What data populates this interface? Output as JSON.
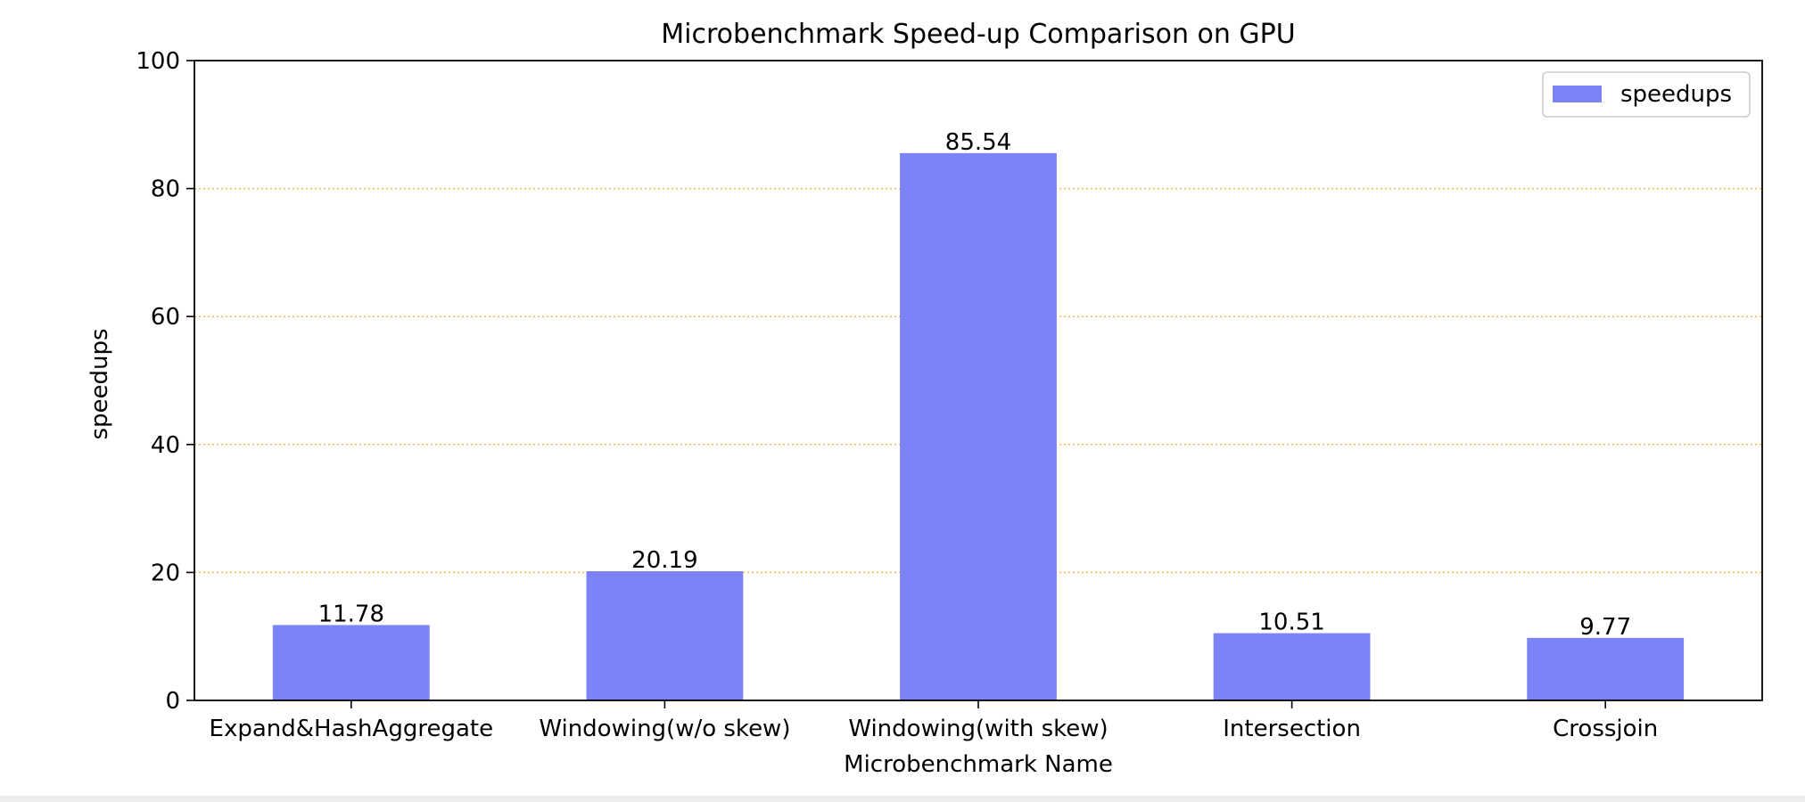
{
  "chart_data": {
    "type": "bar",
    "title": "Microbenchmark Speed-up Comparison on GPU",
    "xlabel": "Microbenchmark Name",
    "ylabel": "speedups",
    "categories": [
      "Expand&HashAggregate",
      "Windowing(w/o skew)",
      "Windowing(with skew)",
      "Intersection",
      "Crossjoin"
    ],
    "series": [
      {
        "name": "speedups",
        "values": [
          11.78,
          20.19,
          85.54,
          10.51,
          9.77
        ],
        "value_labels": [
          "11.78",
          "20.19",
          "85.54",
          "10.51",
          "9.77"
        ]
      }
    ],
    "ylim": [
      0,
      100
    ],
    "yticks": [
      0,
      20,
      40,
      60,
      80,
      100
    ],
    "grid": {
      "axis": "y",
      "style": "dotted"
    },
    "legend": {
      "position": "top-right"
    },
    "colors": {
      "bar": "#7b83f7",
      "grid": "#f0b94a",
      "axis": "#000000",
      "legend_border": "#cccccc"
    }
  }
}
